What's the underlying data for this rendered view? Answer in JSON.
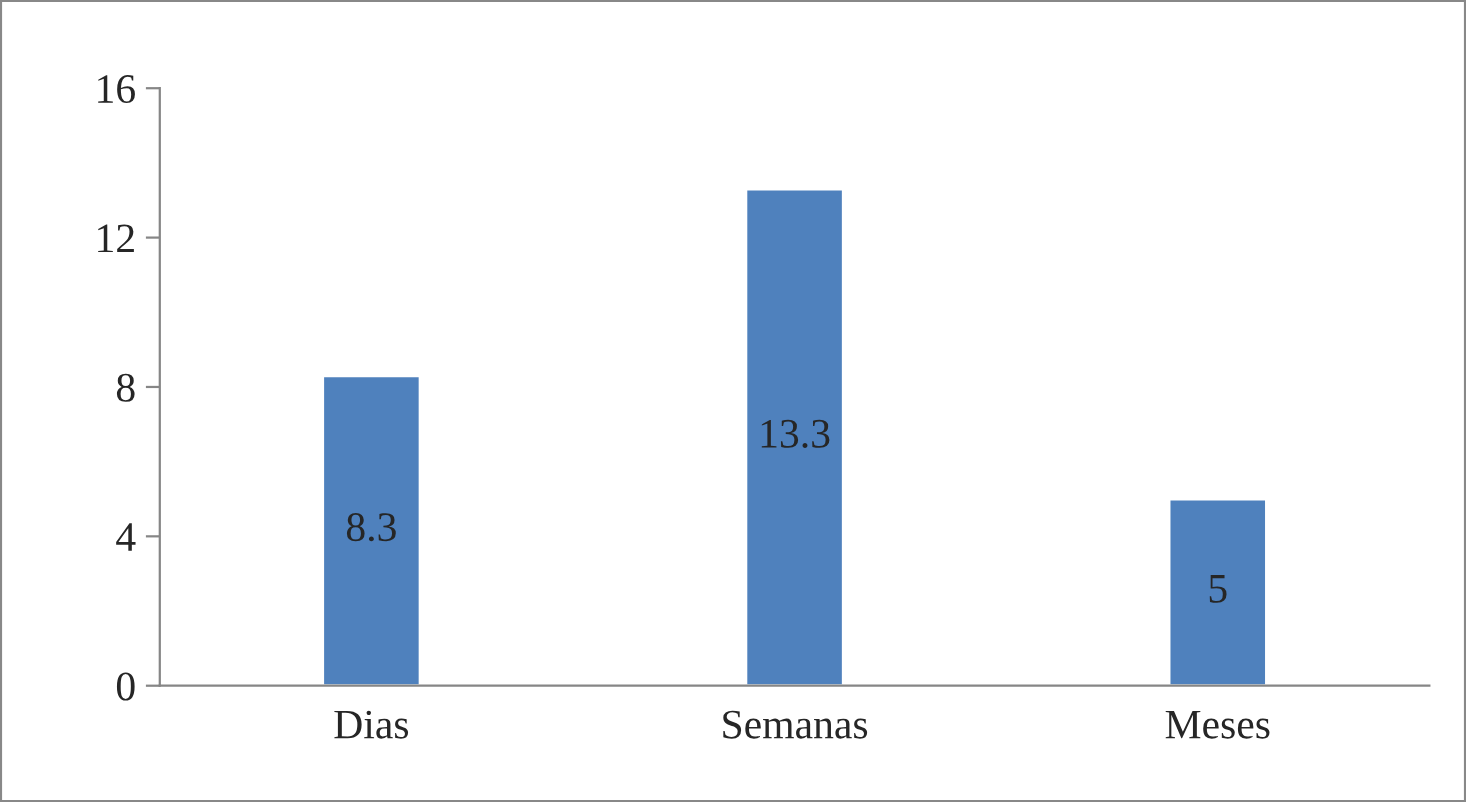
{
  "chart_data": {
    "type": "bar",
    "categories": [
      "Dias",
      "Semanas",
      "Meses"
    ],
    "values": [
      8.3,
      13.3,
      5
    ],
    "color": "#4f81bd",
    "ylim": [
      0,
      16
    ],
    "yticks": [
      0,
      4,
      8,
      12,
      16
    ],
    "grid": false,
    "data_labels": true
  }
}
